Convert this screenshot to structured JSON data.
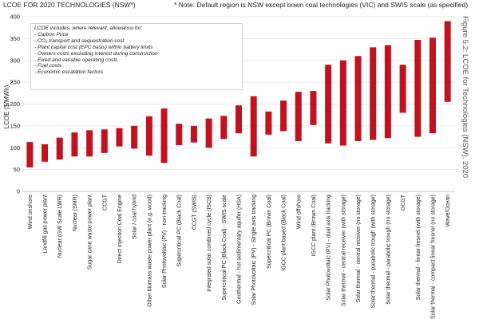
{
  "chart_data": {
    "type": "bar",
    "bar_kind": "range",
    "title": "LCOE FOR 2020 TECHNOLOGIES  (NSW*)",
    "note": "* Note:  Default region is NSW except bown coal technologies  (VIC) and SWIS scale (as specified)",
    "figure_label": "Figure 5.2: LCOE for Technologies (NSW), 2020",
    "ylabel": "LCOE ($/MWh)",
    "xlabel": "",
    "ylim": [
      0,
      400
    ],
    "yticks": [
      0,
      50,
      100,
      150,
      200,
      250,
      300,
      350,
      400
    ],
    "grid": true,
    "bar_color": "#c1121f",
    "categories": [
      "Wind onshore",
      "Landfill gas power plant",
      "Nuclear (GW Scale LWR)",
      "Nuclear (SMR)",
      "Sugar cane waste power plant",
      "CCGT",
      "Direct Injection Coal Engine",
      "Solar / coal hybrid",
      "Other biomass waste power plant (e.g. wood)",
      "Solar Photovoltaic (PV) - non-tracking",
      "Supercritical PC (Black Coal)",
      "CCGT (SWIS)",
      "Integrated solar combined cycle (ISCS)",
      "Supercritical PC (Black Coal) - SWIS scale",
      "Geothermal - hot sedimentary aquifer (HSA)",
      "Solar Photovoltaic (PV) - Single axis tracking",
      "Supercritical PC (Brown Coal)",
      "IGCC plant based (Black Coal)",
      "Wind offshore",
      "IGCC plant (Brown Coal)",
      "Solar Photovoltaic (PV) - dual axis tracking",
      "Solar thermal - central receiver (with storage)",
      "Solar thermal - central receiver (no storage)",
      "Solar thermal - parabolic trough (with storage)",
      "Solar thermal - parabolic trough (no storage)",
      "OCGT",
      "Solar thermal - linear fresnel (with storage)",
      "Solar thermal - compact linear fresnel (no storage)",
      "Wave/Ocean"
    ],
    "low": [
      55,
      68,
      73,
      80,
      80,
      88,
      103,
      98,
      82,
      65,
      106,
      112,
      100,
      120,
      133,
      80,
      130,
      138,
      115,
      152,
      110,
      105,
      115,
      118,
      122,
      180,
      125,
      133,
      205
    ],
    "high": [
      113,
      108,
      123,
      135,
      140,
      142,
      145,
      150,
      172,
      190,
      155,
      150,
      167,
      173,
      197,
      218,
      183,
      208,
      228,
      230,
      290,
      300,
      310,
      330,
      335,
      290,
      347,
      352,
      390
    ]
  },
  "legend_box": {
    "title": "LCOE includes, where relevant, allowance for:",
    "items": [
      "Carbon Price",
      "CO₂ transport and sequestration cost",
      "Plant capital cost (EPC basis) within battery limits",
      "Owners costs excluding interest during construction",
      "Fixed and variable operating costs",
      "Fuel costs",
      "Economic escalation factors"
    ]
  }
}
